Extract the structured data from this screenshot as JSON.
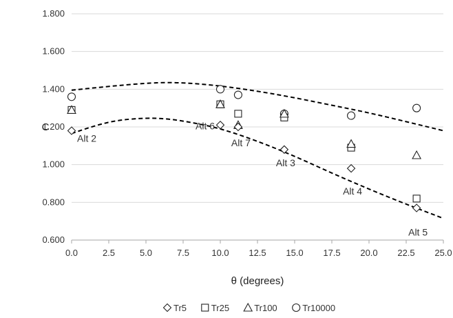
{
  "chart_data": {
    "type": "scatter",
    "title": "",
    "xlabel": "θ (degrees)",
    "ylabel": "C",
    "xlim": [
      0,
      25
    ],
    "ylim": [
      0.6,
      1.8
    ],
    "x_ticks": [
      "0.0",
      "2.5",
      "5.0",
      "7.5",
      "10.0",
      "12.5",
      "15.0",
      "17.5",
      "20.0",
      "22.5",
      "25.0"
    ],
    "y_ticks": [
      "0.600",
      "0.800",
      "1.000",
      "1.200",
      "1.400",
      "1.600",
      "1.800"
    ],
    "grid": "horizontal",
    "legend_position": "bottom",
    "series": [
      {
        "name": "Tr5",
        "marker": "diamond",
        "points": [
          [
            0.0,
            1.18
          ],
          [
            10.0,
            1.21
          ],
          [
            11.2,
            1.2
          ],
          [
            14.3,
            1.08
          ],
          [
            18.8,
            0.98
          ],
          [
            23.2,
            0.77
          ]
        ]
      },
      {
        "name": "Tr25",
        "marker": "square",
        "points": [
          [
            0.0,
            1.29
          ],
          [
            10.0,
            1.32
          ],
          [
            11.2,
            1.27
          ],
          [
            14.3,
            1.25
          ],
          [
            18.8,
            1.09
          ],
          [
            23.2,
            0.82
          ]
        ]
      },
      {
        "name": "Tr100",
        "marker": "triangle",
        "points": [
          [
            0.0,
            1.29
          ],
          [
            10.0,
            1.32
          ],
          [
            11.2,
            1.21
          ],
          [
            14.3,
            1.27
          ],
          [
            18.8,
            1.11
          ],
          [
            23.2,
            1.05
          ]
        ]
      },
      {
        "name": "Tr10000",
        "marker": "circle",
        "points": [
          [
            0.0,
            1.36
          ],
          [
            10.0,
            1.4
          ],
          [
            11.2,
            1.37
          ],
          [
            14.3,
            1.27
          ],
          [
            18.8,
            1.26
          ],
          [
            23.2,
            1.3
          ]
        ]
      }
    ],
    "trend_lines": [
      {
        "style": "dashed",
        "points": [
          [
            0,
            1.395
          ],
          [
            2.5,
            1.415
          ],
          [
            5,
            1.432
          ],
          [
            6.5,
            1.436
          ],
          [
            8,
            1.432
          ],
          [
            10,
            1.418
          ],
          [
            12.5,
            1.39
          ],
          [
            15,
            1.355
          ],
          [
            17.5,
            1.315
          ],
          [
            20,
            1.275
          ],
          [
            22.5,
            1.228
          ],
          [
            25,
            1.18
          ]
        ]
      },
      {
        "style": "dashed",
        "points": [
          [
            0,
            1.165
          ],
          [
            1.5,
            1.205
          ],
          [
            3,
            1.235
          ],
          [
            5,
            1.248
          ],
          [
            6.5,
            1.243
          ],
          [
            8,
            1.225
          ],
          [
            10,
            1.192
          ],
          [
            12.5,
            1.125
          ],
          [
            15,
            1.045
          ],
          [
            17.5,
            0.955
          ],
          [
            20,
            0.87
          ],
          [
            22.5,
            0.79
          ],
          [
            25,
            0.715
          ]
        ]
      }
    ],
    "annotations": [
      {
        "text": "Alt 2",
        "x": 0.0,
        "y": 1.18
      },
      {
        "text": "Alt 6",
        "x": 10.0,
        "y": 1.21
      },
      {
        "text": "Alt 7",
        "x": 11.2,
        "y": 1.2
      },
      {
        "text": "Alt 3",
        "x": 14.3,
        "y": 1.08
      },
      {
        "text": "Alt 4",
        "x": 18.8,
        "y": 0.98
      },
      {
        "text": "Alt 5",
        "x": 23.2,
        "y": 0.77
      }
    ]
  }
}
